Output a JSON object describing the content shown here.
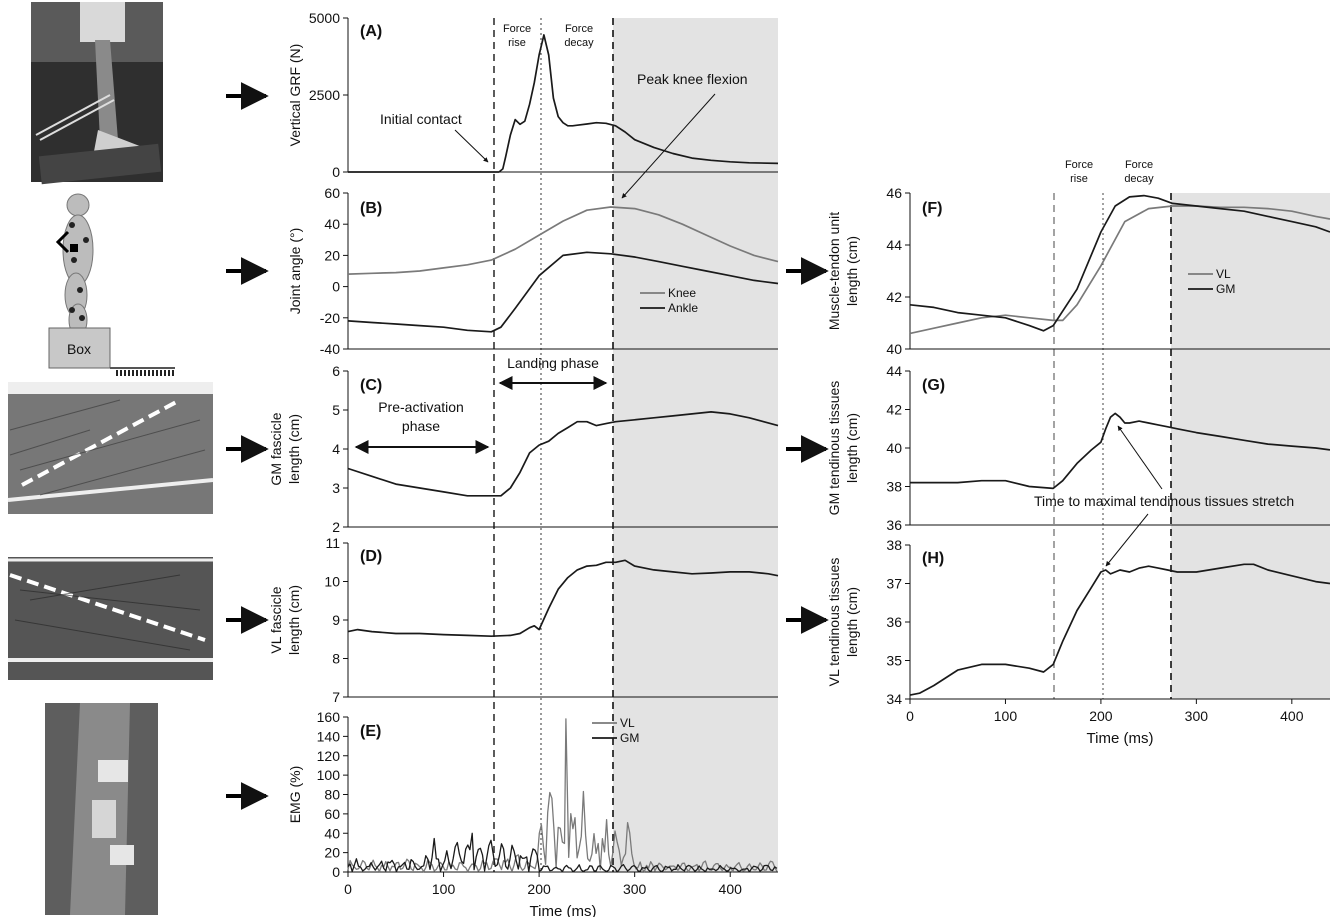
{
  "figure": {
    "left_images": [
      {
        "id": "img-a",
        "kind": "photo",
        "caption": "landing foot on force plate"
      },
      {
        "id": "img-b",
        "kind": "diagram",
        "label": "Box"
      },
      {
        "id": "img-c",
        "kind": "ultrasound"
      },
      {
        "id": "img-d",
        "kind": "ultrasound"
      },
      {
        "id": "img-e",
        "kind": "photo",
        "caption": "EMG electrodes on leg"
      }
    ],
    "colors": {
      "dark": "#1a1a1a",
      "gray": "#7a7a7a",
      "shade": "#e3e3e3"
    }
  },
  "chart_data": [
    {
      "id": "A",
      "type": "line",
      "panel_label": "(A)",
      "ylabel": "Vertical GRF (N)",
      "ylim": [
        0,
        5000
      ],
      "yticks": [
        0,
        2500,
        5000
      ],
      "xlim": [
        0,
        450
      ],
      "series": [
        {
          "color": "dark",
          "x": [
            0,
            100,
            150,
            158,
            162,
            165,
            170,
            175,
            180,
            185,
            190,
            195,
            200,
            205,
            210,
            215,
            220,
            225,
            230,
            235,
            240,
            250,
            260,
            270,
            280,
            290,
            300,
            320,
            340,
            360,
            380,
            400,
            420,
            450
          ],
          "y": [
            0,
            0,
            0,
            0,
            100,
            500,
            1200,
            1700,
            1550,
            1650,
            2200,
            2900,
            3800,
            4450,
            3800,
            2400,
            1800,
            1600,
            1500,
            1500,
            1520,
            1560,
            1600,
            1580,
            1500,
            1300,
            1050,
            800,
            600,
            450,
            380,
            330,
            300,
            280
          ]
        }
      ],
      "annotations": [
        {
          "text": "Initial contact"
        },
        {
          "text": "Peak knee flexion"
        },
        {
          "text": [
            "Force",
            "rise"
          ]
        },
        {
          "text": [
            "Force",
            "decay"
          ]
        }
      ]
    },
    {
      "id": "B",
      "type": "line",
      "panel_label": "(B)",
      "ylabel": "Joint angle (°)",
      "ylim": [
        -40,
        60
      ],
      "yticks": [
        -40,
        -20,
        0,
        20,
        40,
        60
      ],
      "xlim": [
        0,
        450
      ],
      "series": [
        {
          "name": "Knee",
          "color": "gray",
          "x": [
            0,
            25,
            50,
            75,
            100,
            125,
            150,
            175,
            200,
            225,
            250,
            275,
            300,
            325,
            350,
            375,
            400,
            425,
            450
          ],
          "y": [
            8,
            8.5,
            9,
            10,
            12,
            14,
            17,
            24,
            33,
            42,
            49,
            51,
            50,
            46,
            40,
            33,
            26,
            20,
            16
          ]
        },
        {
          "name": "Ankle",
          "color": "dark",
          "x": [
            0,
            25,
            50,
            75,
            100,
            125,
            150,
            160,
            175,
            200,
            225,
            250,
            275,
            300,
            325,
            350,
            375,
            400,
            425,
            450
          ],
          "y": [
            -22,
            -23,
            -24,
            -25,
            -26,
            -28,
            -29,
            -26,
            -14,
            7,
            20,
            22,
            21,
            19,
            16,
            13,
            10,
            7,
            4,
            2
          ]
        }
      ],
      "legend": "center-right"
    },
    {
      "id": "C",
      "type": "line",
      "panel_label": "(C)",
      "ylabel": [
        "GM fascicle",
        "length (cm)"
      ],
      "ylim": [
        2,
        6
      ],
      "yticks": [
        2,
        3,
        4,
        5,
        6
      ],
      "xlim": [
        0,
        450
      ],
      "series": [
        {
          "color": "dark",
          "x": [
            0,
            25,
            50,
            75,
            100,
            125,
            150,
            160,
            170,
            180,
            190,
            200,
            210,
            220,
            230,
            240,
            250,
            260,
            270,
            280,
            300,
            320,
            340,
            360,
            380,
            400,
            420,
            450
          ],
          "y": [
            3.5,
            3.3,
            3.1,
            3.0,
            2.9,
            2.8,
            2.8,
            2.8,
            3.0,
            3.4,
            3.9,
            4.1,
            4.2,
            4.4,
            4.55,
            4.7,
            4.7,
            4.6,
            4.65,
            4.7,
            4.75,
            4.8,
            4.85,
            4.9,
            4.95,
            4.9,
            4.8,
            4.6
          ]
        }
      ],
      "annotations": [
        {
          "text": [
            "Pre-activation",
            "phase"
          ]
        },
        {
          "text": "Landing phase"
        }
      ]
    },
    {
      "id": "D",
      "type": "line",
      "panel_label": "(D)",
      "ylabel": [
        "VL fascicle",
        "length (cm)"
      ],
      "ylim": [
        7,
        11
      ],
      "yticks": [
        7,
        8,
        9,
        10,
        11
      ],
      "xlim": [
        0,
        450
      ],
      "series": [
        {
          "color": "dark",
          "x": [
            0,
            10,
            25,
            50,
            75,
            100,
            125,
            150,
            170,
            180,
            190,
            195,
            200,
            210,
            220,
            230,
            240,
            250,
            260,
            270,
            280,
            290,
            300,
            320,
            340,
            360,
            380,
            400,
            420,
            440,
            450
          ],
          "y": [
            8.7,
            8.75,
            8.7,
            8.65,
            8.65,
            8.62,
            8.6,
            8.58,
            8.6,
            8.65,
            8.8,
            8.85,
            8.75,
            9.3,
            9.8,
            10.1,
            10.3,
            10.4,
            10.42,
            10.5,
            10.5,
            10.55,
            10.4,
            10.3,
            10.25,
            10.2,
            10.22,
            10.25,
            10.25,
            10.2,
            10.15
          ]
        }
      ]
    },
    {
      "id": "E",
      "type": "line",
      "panel_label": "(E)",
      "ylabel": "EMG (%)",
      "ylim": [
        0,
        160
      ],
      "yticks": [
        0,
        20,
        40,
        60,
        80,
        100,
        120,
        140,
        160
      ],
      "xlim": [
        0,
        450
      ],
      "xticks": [
        0,
        100,
        200,
        300,
        400
      ],
      "xlabel": "Time (ms)",
      "series": [
        {
          "name": "VL",
          "color": "gray",
          "note": "rectified EMG trace",
          "peak": {
            "x": 228,
            "y": 158
          }
        },
        {
          "name": "GM",
          "color": "dark",
          "note": "rectified EMG trace",
          "peak": {
            "x": 130,
            "y": 40
          }
        }
      ],
      "legend": "top-right"
    },
    {
      "id": "F",
      "type": "line",
      "panel_label": "(F)",
      "ylabel": [
        "Muscle-tendon unit",
        "length (cm)"
      ],
      "ylim": [
        40,
        46
      ],
      "yticks": [
        40,
        42,
        44,
        46
      ],
      "xlim": [
        0,
        440
      ],
      "series": [
        {
          "name": "VL",
          "color": "gray",
          "x": [
            0,
            25,
            50,
            75,
            100,
            125,
            150,
            160,
            175,
            200,
            225,
            250,
            275,
            300,
            325,
            350,
            375,
            400,
            425,
            440
          ],
          "y": [
            40.6,
            40.8,
            41.0,
            41.2,
            41.3,
            41.2,
            41.1,
            41.1,
            41.7,
            43.2,
            44.9,
            45.4,
            45.5,
            45.5,
            45.45,
            45.45,
            45.4,
            45.3,
            45.1,
            45.0
          ]
        },
        {
          "name": "GM",
          "color": "dark",
          "x": [
            0,
            25,
            50,
            75,
            100,
            125,
            140,
            150,
            175,
            200,
            215,
            230,
            245,
            260,
            275,
            300,
            325,
            350,
            375,
            400,
            425,
            440
          ],
          "y": [
            41.7,
            41.6,
            41.4,
            41.3,
            41.2,
            40.9,
            40.7,
            40.9,
            42.3,
            44.5,
            45.5,
            45.85,
            45.9,
            45.8,
            45.6,
            45.5,
            45.4,
            45.3,
            45.1,
            44.9,
            44.7,
            44.5
          ]
        }
      ],
      "legend": "center-right"
    },
    {
      "id": "G",
      "type": "line",
      "panel_label": "(G)",
      "ylabel": [
        "GM tendinous tissues",
        "length (cm)"
      ],
      "ylim": [
        36,
        44
      ],
      "yticks": [
        36,
        38,
        40,
        42,
        44
      ],
      "xlim": [
        0,
        440
      ],
      "series": [
        {
          "color": "dark",
          "x": [
            0,
            25,
            50,
            75,
            100,
            125,
            150,
            160,
            175,
            190,
            200,
            205,
            210,
            215,
            220,
            225,
            230,
            240,
            250,
            260,
            270,
            280,
            300,
            325,
            350,
            375,
            400,
            425,
            440
          ],
          "y": [
            38.2,
            38.2,
            38.2,
            38.3,
            38.3,
            38.0,
            37.9,
            38.3,
            39.2,
            39.9,
            40.3,
            41.0,
            41.6,
            41.8,
            41.6,
            41.3,
            41.3,
            41.4,
            41.3,
            41.2,
            41.1,
            41.0,
            40.8,
            40.6,
            40.4,
            40.2,
            40.1,
            40.0,
            39.9
          ]
        }
      ],
      "annotations": [
        {
          "text": "Time to maximal tendinous tissues stretch"
        }
      ]
    },
    {
      "id": "H",
      "type": "line",
      "panel_label": "(H)",
      "ylabel": [
        "VL tendinous tissues",
        "length (cm)"
      ],
      "ylim": [
        34,
        38
      ],
      "yticks": [
        34,
        35,
        36,
        37,
        38
      ],
      "xlim": [
        0,
        440
      ],
      "xticks": [
        0,
        100,
        200,
        300,
        400
      ],
      "xlabel": "Time (ms)",
      "series": [
        {
          "color": "dark",
          "x": [
            0,
            10,
            25,
            50,
            75,
            100,
            125,
            140,
            150,
            160,
            175,
            190,
            200,
            205,
            210,
            220,
            230,
            240,
            250,
            260,
            270,
            280,
            300,
            325,
            350,
            360,
            375,
            400,
            425,
            440
          ],
          "y": [
            34.1,
            34.15,
            34.35,
            34.75,
            34.9,
            34.9,
            34.8,
            34.7,
            34.9,
            35.5,
            36.3,
            36.9,
            37.3,
            37.35,
            37.25,
            37.35,
            37.3,
            37.4,
            37.45,
            37.4,
            37.35,
            37.3,
            37.3,
            37.4,
            37.5,
            37.5,
            37.35,
            37.2,
            37.05,
            37.0
          ]
        }
      ]
    }
  ]
}
